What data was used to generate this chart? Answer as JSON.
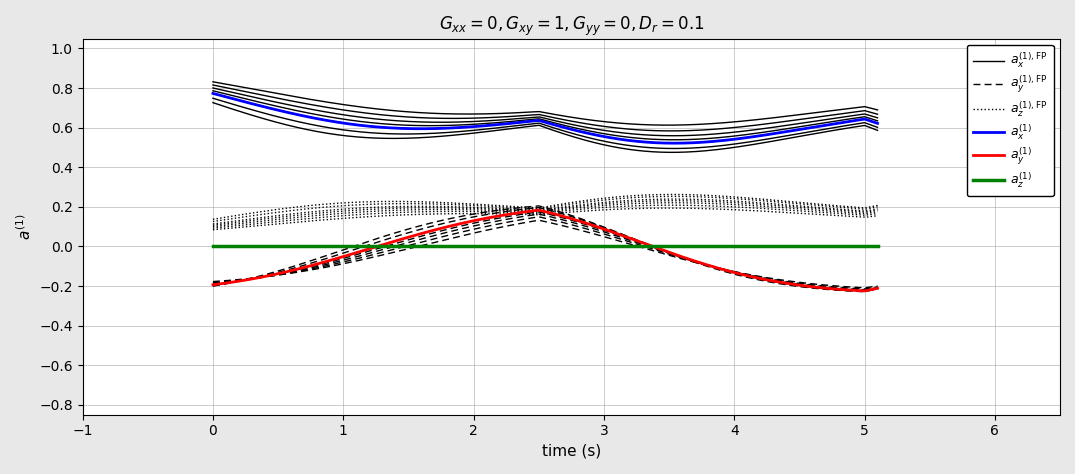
{
  "title": "$G_{xx} = 0, G_{xy} = 1, G_{yy} = 0, D_r = 0.1$",
  "xlabel": "time (s)",
  "ylabel": "$a^{(1)}$",
  "xlim": [
    -1,
    6.5
  ],
  "ylim": [
    -0.85,
    1.05
  ],
  "xticks": [
    -1,
    0,
    1,
    2,
    3,
    4,
    5,
    6
  ],
  "yticks": [
    -0.8,
    -0.6,
    -0.4,
    -0.2,
    0,
    0.2,
    0.4,
    0.6,
    0.8,
    1
  ],
  "figsize": [
    10.75,
    4.74
  ],
  "dpi": 100,
  "background_color": "#e8e8e8",
  "plot_bg_color": "#ffffff",
  "reversal_time": 2.5,
  "Dr": 0.1,
  "G": 1.0
}
